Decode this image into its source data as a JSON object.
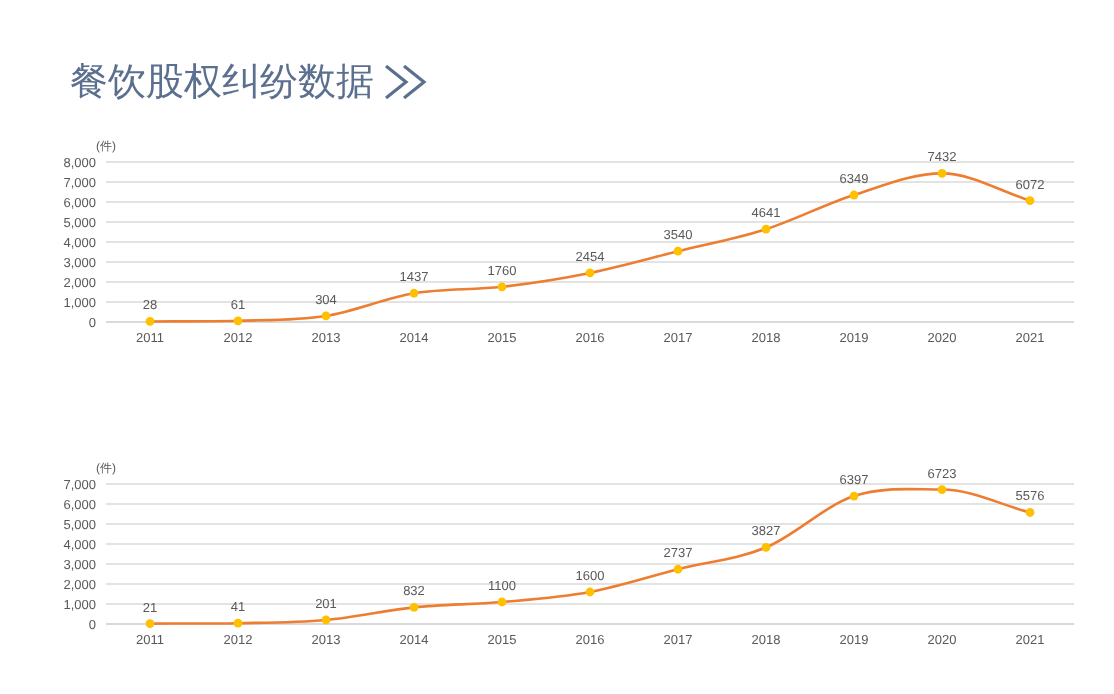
{
  "chart_data": [
    {
      "type": "line",
      "title": "餐饮股权纠纷数据",
      "ylabel": "(件)",
      "categories": [
        "2011",
        "2012",
        "2013",
        "2014",
        "2015",
        "2016",
        "2017",
        "2018",
        "2019",
        "2020",
        "2021"
      ],
      "series": [
        {
          "color": "#ed7d31",
          "values": [
            28,
            61,
            304,
            1437,
            1760,
            2454,
            3540,
            4641,
            6349,
            7432,
            6072
          ]
        }
      ],
      "ylim": [
        0,
        8000
      ],
      "yticks": [
        {
          "value": 0,
          "label": "0"
        },
        {
          "value": 1000,
          "label": "1,000"
        },
        {
          "value": 2000,
          "label": "2,000"
        },
        {
          "value": 3000,
          "label": "3,000"
        },
        {
          "value": 4000,
          "label": "4,000"
        },
        {
          "value": 5000,
          "label": "5,000"
        },
        {
          "value": 6000,
          "label": "6,000"
        },
        {
          "value": 7000,
          "label": "7,000"
        },
        {
          "value": 8000,
          "label": "8,000"
        }
      ],
      "grid": "y",
      "marker": "circle",
      "data_labels": true
    },
    {
      "type": "line",
      "ylabel": "(件)",
      "categories": [
        "2011",
        "2012",
        "2013",
        "2014",
        "2015",
        "2016",
        "2017",
        "2018",
        "2019",
        "2020",
        "2021"
      ],
      "series": [
        {
          "color": "#ed7d31",
          "values": [
            21,
            41,
            201,
            832,
            1100,
            1600,
            2737,
            3827,
            6397,
            6723,
            5576
          ]
        }
      ],
      "ylim": [
        0,
        7000
      ],
      "yticks": [
        {
          "value": 0,
          "label": "0"
        },
        {
          "value": 1000,
          "label": "1,000"
        },
        {
          "value": 2000,
          "label": "2,000"
        },
        {
          "value": 3000,
          "label": "3,000"
        },
        {
          "value": 4000,
          "label": "4,000"
        },
        {
          "value": 5000,
          "label": "5,000"
        },
        {
          "value": 6000,
          "label": "6,000"
        },
        {
          "value": 7000,
          "label": "7,000"
        }
      ],
      "grid": "y",
      "marker": "circle",
      "data_labels": true
    }
  ]
}
